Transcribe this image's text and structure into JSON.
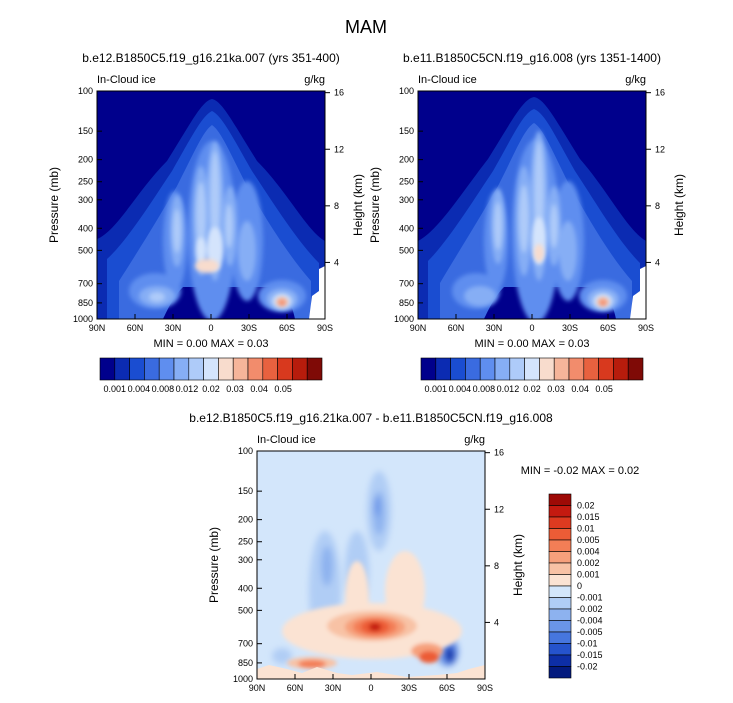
{
  "page": {
    "suptitle": "MAM"
  },
  "chart_data": [
    {
      "type": "contour",
      "title": "b.e12.B1850C5.f19_g16.21ka.007 (yrs 351-400)",
      "left_string": "In-Cloud ice",
      "right_string": "g/kg",
      "ylabel": "Pressure (mb)",
      "ylabel_right": "Height (km)",
      "xticks": [
        "90N",
        "60N",
        "30N",
        "0",
        "30S",
        "60S",
        "90S"
      ],
      "yticks": [
        "100",
        "150",
        "200",
        "250",
        "300",
        "400",
        "500",
        "700",
        "850",
        "1000"
      ],
      "height_ticks": [
        "16",
        "12",
        "8",
        "4"
      ],
      "ylim": [
        1000,
        100
      ],
      "min_max": "MIN =   0.00   MAX =   0.03",
      "levels": [
        "0.001",
        "0.004",
        "0.008",
        "0.012",
        "0.02",
        "0.03",
        "0.04",
        "0.05"
      ],
      "colors": [
        "#00008c",
        "#0b2bb2",
        "#1a4dd1",
        "#3a6be0",
        "#5f8eef",
        "#86aef5",
        "#aecbf9",
        "#d4e4fc",
        "#f8dccd",
        "#f6b59a",
        "#f28c6c",
        "#e8613f",
        "#d8391e",
        "#b71c0c",
        "#7f0a06"
      ]
    },
    {
      "type": "contour",
      "title": "b.e11.B1850C5CN.f19_g16.008 (yrs 1351-1400)",
      "left_string": "In-Cloud ice",
      "right_string": "g/kg",
      "ylabel": "Pressure (mb)",
      "ylabel_right": "Height (km)",
      "xticks": [
        "90N",
        "60N",
        "30N",
        "0",
        "30S",
        "60S",
        "90S"
      ],
      "yticks": [
        "100",
        "150",
        "200",
        "250",
        "300",
        "400",
        "500",
        "700",
        "850",
        "1000"
      ],
      "height_ticks": [
        "16",
        "12",
        "8",
        "4"
      ],
      "ylim": [
        1000,
        100
      ],
      "min_max": "MIN =   0.00   MAX =   0.03",
      "levels": [
        "0.001",
        "0.004",
        "0.008",
        "0.012",
        "0.02",
        "0.03",
        "0.04",
        "0.05"
      ],
      "colors": [
        "#00008c",
        "#0b2bb2",
        "#1a4dd1",
        "#3a6be0",
        "#5f8eef",
        "#86aef5",
        "#aecbf9",
        "#d4e4fc",
        "#f8dccd",
        "#f6b59a",
        "#f28c6c",
        "#e8613f",
        "#d8391e",
        "#b71c0c",
        "#7f0a06"
      ]
    },
    {
      "type": "contour",
      "title": "b.e12.B1850C5.f19_g16.21ka.007 - b.e11.B1850C5CN.f19_g16.008",
      "left_string": "In-Cloud ice",
      "right_string": "g/kg",
      "ylabel": "Pressure (mb)",
      "ylabel_right": "Height (km)",
      "xticks": [
        "90N",
        "60N",
        "30N",
        "0",
        "30S",
        "60S",
        "90S"
      ],
      "yticks": [
        "100",
        "150",
        "200",
        "250",
        "300",
        "400",
        "500",
        "700",
        "850",
        "1000"
      ],
      "height_ticks": [
        "16",
        "12",
        "8",
        "4"
      ],
      "ylim": [
        1000,
        100
      ],
      "min_max": "MIN =  -0.02   MAX =   0.02",
      "levels": [
        "0.02",
        "0.015",
        "0.01",
        "0.005",
        "0.004",
        "0.002",
        "0.001",
        "0",
        "-0.001",
        "-0.002",
        "-0.004",
        "-0.005",
        "-0.01",
        "-0.015",
        "-0.02"
      ],
      "colors": [
        "#9e0a06",
        "#c41a10",
        "#dd3a20",
        "#ec5c36",
        "#f37e56",
        "#f6a07c",
        "#f8c2a5",
        "#fbe3d3",
        "#d3e6fb",
        "#b0cdf5",
        "#8db2ef",
        "#6a95e8",
        "#4676df",
        "#2553cc",
        "#0d2ea6",
        "#031a7e"
      ]
    }
  ]
}
